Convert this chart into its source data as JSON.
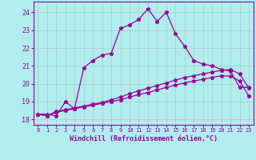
{
  "xlabel": "Windchill (Refroidissement éolien,°C)",
  "background_color": "#b2eded",
  "grid_color": "#aacccc",
  "line_color": "#990099",
  "ylim": [
    17.7,
    24.6
  ],
  "xlim": [
    -0.5,
    23.5
  ],
  "yticks": [
    18,
    19,
    20,
    21,
    22,
    23,
    24
  ],
  "xticks": [
    0,
    1,
    2,
    3,
    4,
    5,
    6,
    7,
    8,
    9,
    10,
    11,
    12,
    13,
    14,
    15,
    16,
    17,
    18,
    19,
    20,
    21,
    22,
    23
  ],
  "line1_x": [
    0,
    1,
    2,
    3,
    4,
    5,
    6,
    7,
    8,
    9,
    10,
    11,
    12,
    13,
    14,
    15,
    16,
    17,
    18,
    19,
    20,
    21,
    22,
    23
  ],
  "line1_y": [
    18.3,
    18.3,
    18.2,
    19.0,
    18.6,
    20.9,
    21.3,
    21.6,
    21.7,
    23.1,
    23.3,
    23.6,
    24.2,
    23.5,
    24.0,
    22.8,
    22.1,
    21.3,
    21.1,
    21.0,
    20.8,
    20.7,
    19.8,
    19.8
  ],
  "line2_x": [
    0,
    1,
    2,
    3,
    4,
    5,
    6,
    7,
    8,
    9,
    10,
    11,
    12,
    13,
    14,
    15,
    16,
    17,
    18,
    19,
    20,
    21,
    22,
    23
  ],
  "line2_y": [
    18.3,
    18.2,
    18.45,
    18.55,
    18.65,
    18.75,
    18.85,
    18.95,
    19.1,
    19.25,
    19.45,
    19.6,
    19.75,
    19.9,
    20.05,
    20.2,
    20.35,
    20.45,
    20.55,
    20.65,
    20.75,
    20.8,
    20.55,
    19.75
  ],
  "line3_x": [
    0,
    1,
    2,
    3,
    4,
    5,
    6,
    7,
    8,
    9,
    10,
    11,
    12,
    13,
    14,
    15,
    16,
    17,
    18,
    19,
    20,
    21,
    22,
    23
  ],
  "line3_y": [
    18.3,
    18.2,
    18.4,
    18.5,
    18.6,
    18.7,
    18.8,
    18.9,
    19.0,
    19.1,
    19.25,
    19.4,
    19.5,
    19.65,
    19.8,
    19.92,
    20.05,
    20.15,
    20.25,
    20.35,
    20.45,
    20.42,
    20.15,
    19.3
  ]
}
